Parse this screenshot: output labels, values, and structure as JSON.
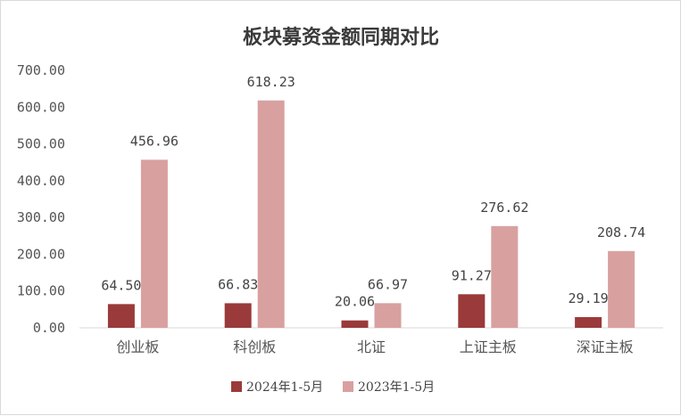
{
  "chart_data": {
    "type": "bar",
    "title": "板块募资金额同期对比",
    "categories": [
      "创业板",
      "科创板",
      "北证",
      "上证主板",
      "深证主板"
    ],
    "series": [
      {
        "name": "2024年1-5月",
        "color": "#9b3a3a",
        "values": [
          64.5,
          66.83,
          20.06,
          91.27,
          29.19
        ],
        "labels": [
          "64.50",
          "66.83",
          "20.06",
          "91.27",
          "29.19"
        ]
      },
      {
        "name": "2023年1-5月",
        "color": "#d9a0a0",
        "values": [
          456.96,
          618.23,
          66.97,
          276.62,
          208.74
        ],
        "labels": [
          "456.96",
          "618.23",
          "66.97",
          "276.62",
          "208.74"
        ]
      }
    ],
    "yticks": [
      "0.00",
      "100.00",
      "200.00",
      "300.00",
      "400.00",
      "500.00",
      "600.00",
      "700.00"
    ],
    "ylim": [
      0,
      700
    ],
    "grid": false,
    "legend_position": "bottom"
  }
}
